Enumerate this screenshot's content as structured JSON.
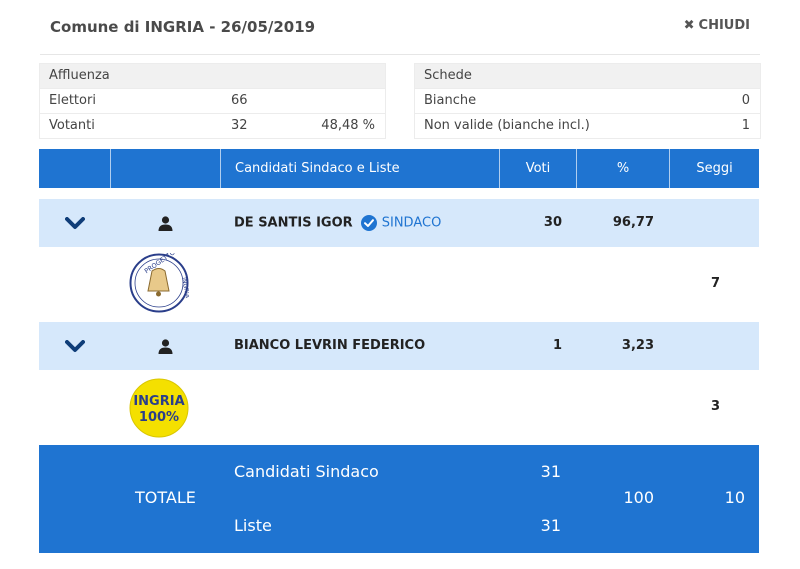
{
  "header": {
    "title": "Comune di INGRIA - 26/05/2019",
    "close_label": "CHIUDI"
  },
  "turnout": {
    "heading": "Affluenza",
    "voters_label": "Elettori",
    "voters_value": "66",
    "votes_label": "Votanti",
    "votes_value": "32",
    "votes_pct": "48,48 %"
  },
  "ballots": {
    "heading": "Schede",
    "blank_label": "Bianche",
    "blank_value": "0",
    "invalid_label": "Non valide (bianche incl.)",
    "invalid_value": "1"
  },
  "table": {
    "headers": {
      "candidates": "Candidati Sindaco e Liste",
      "votes": "Voti",
      "percent": "%",
      "seats": "Seggi"
    },
    "candidates": [
      {
        "name": "DE SANTIS IGOR",
        "role": "SINDACO",
        "votes": "30",
        "percent": "96,77",
        "list": {
          "logo_text_top": "PROGETTO",
          "logo_text_side": "INGRIA",
          "seats": "7"
        }
      },
      {
        "name": "BIANCO LEVRIN FEDERICO",
        "votes": "1",
        "percent": "3,23",
        "list": {
          "logo_line1": "INGRIA",
          "logo_line2": "100%",
          "seats": "3"
        }
      }
    ],
    "total": {
      "label": "TOTALE",
      "candidates_label": "Candidati Sindaco",
      "candidates_votes": "31",
      "lists_label": "Liste",
      "lists_votes": "31",
      "percent": "100",
      "seats": "10"
    }
  },
  "colors": {
    "accent": "#1f74d1",
    "row_highlight": "#d6e8fb",
    "logo_yellow": "#f4e000",
    "logo_navy": "#2a3e8a"
  },
  "icons": {
    "close": "close-icon",
    "expand": "chevron-down-icon",
    "candidate": "person-icon",
    "verified": "check-badge-icon"
  }
}
